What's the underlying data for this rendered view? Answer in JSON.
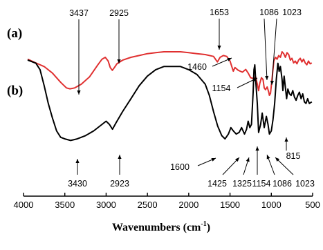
{
  "chart_data": {
    "type": "line",
    "x_axis": {
      "title": "Wavenumbers (cm",
      "unit_superscript": "-1",
      "title_close": ")",
      "lim": [
        4000,
        500
      ],
      "reversed": true,
      "ticks": [
        "4000",
        "3500",
        "3000",
        "2500",
        "2000",
        "1500",
        "1000",
        "500"
      ]
    },
    "series": [
      {
        "panel_label": "(a)",
        "color": "#e03030",
        "points": [
          [
            3950,
            0.42
          ],
          [
            3850,
            0.38
          ],
          [
            3750,
            0.34
          ],
          [
            3650,
            0.27
          ],
          [
            3550,
            0.17
          ],
          [
            3480,
            0.11
          ],
          [
            3437,
            0.1
          ],
          [
            3380,
            0.11
          ],
          [
            3300,
            0.15
          ],
          [
            3200,
            0.23
          ],
          [
            3100,
            0.36
          ],
          [
            3050,
            0.42
          ],
          [
            3010,
            0.44
          ],
          [
            2975,
            0.4
          ],
          [
            2950,
            0.33
          ],
          [
            2925,
            0.3
          ],
          [
            2900,
            0.33
          ],
          [
            2870,
            0.37
          ],
          [
            2800,
            0.41
          ],
          [
            2700,
            0.44
          ],
          [
            2600,
            0.46
          ],
          [
            2500,
            0.48
          ],
          [
            2400,
            0.49
          ],
          [
            2300,
            0.5
          ],
          [
            2200,
            0.5
          ],
          [
            2100,
            0.5
          ],
          [
            2000,
            0.49
          ],
          [
            1900,
            0.48
          ],
          [
            1800,
            0.47
          ],
          [
            1700,
            0.45
          ],
          [
            1653,
            0.39
          ],
          [
            1620,
            0.44
          ],
          [
            1580,
            0.46
          ],
          [
            1540,
            0.45
          ],
          [
            1500,
            0.4
          ],
          [
            1460,
            0.29
          ],
          [
            1440,
            0.33
          ],
          [
            1400,
            0.3
          ],
          [
            1350,
            0.28
          ],
          [
            1310,
            0.31
          ],
          [
            1280,
            0.27
          ],
          [
            1250,
            0.22
          ],
          [
            1210,
            0.21
          ],
          [
            1190,
            0.23
          ],
          [
            1170,
            0.15
          ],
          [
            1154,
            0.08
          ],
          [
            1140,
            0.16
          ],
          [
            1120,
            0.22
          ],
          [
            1100,
            0.2
          ],
          [
            1086,
            0.11
          ],
          [
            1070,
            0.09
          ],
          [
            1050,
            0.12
          ],
          [
            1030,
            0.06
          ],
          [
            1023,
            0.03
          ],
          [
            1010,
            0.05
          ],
          [
            990,
            0.22
          ],
          [
            970,
            0.4
          ],
          [
            950,
            0.44
          ],
          [
            930,
            0.42
          ],
          [
            910,
            0.46
          ],
          [
            890,
            0.44
          ],
          [
            870,
            0.5
          ],
          [
            850,
            0.48
          ],
          [
            830,
            0.44
          ],
          [
            810,
            0.49
          ],
          [
            790,
            0.47
          ],
          [
            770,
            0.41
          ],
          [
            750,
            0.43
          ],
          [
            730,
            0.38
          ],
          [
            710,
            0.4
          ],
          [
            690,
            0.37
          ],
          [
            670,
            0.41
          ],
          [
            650,
            0.43
          ],
          [
            630,
            0.39
          ],
          [
            610,
            0.42
          ],
          [
            590,
            0.38
          ],
          [
            570,
            0.36
          ],
          [
            550,
            0.4
          ],
          [
            530,
            0.37
          ],
          [
            510,
            0.38
          ]
        ]
      },
      {
        "panel_label": "(b)",
        "color": "#000000",
        "points": [
          [
            3950,
            0.82
          ],
          [
            3850,
            0.8
          ],
          [
            3800,
            0.76
          ],
          [
            3750,
            0.66
          ],
          [
            3700,
            0.55
          ],
          [
            3650,
            0.46
          ],
          [
            3600,
            0.38
          ],
          [
            3550,
            0.34
          ],
          [
            3500,
            0.33
          ],
          [
            3430,
            0.32
          ],
          [
            3350,
            0.33
          ],
          [
            3250,
            0.35
          ],
          [
            3150,
            0.38
          ],
          [
            3050,
            0.42
          ],
          [
            3000,
            0.44
          ],
          [
            2960,
            0.42
          ],
          [
            2923,
            0.39
          ],
          [
            2880,
            0.43
          ],
          [
            2800,
            0.5
          ],
          [
            2700,
            0.58
          ],
          [
            2600,
            0.66
          ],
          [
            2500,
            0.72
          ],
          [
            2400,
            0.76
          ],
          [
            2300,
            0.78
          ],
          [
            2200,
            0.78
          ],
          [
            2100,
            0.78
          ],
          [
            2000,
            0.76
          ],
          [
            1900,
            0.73
          ],
          [
            1800,
            0.67
          ],
          [
            1750,
            0.6
          ],
          [
            1700,
            0.5
          ],
          [
            1650,
            0.41
          ],
          [
            1600,
            0.35
          ],
          [
            1560,
            0.33
          ],
          [
            1520,
            0.36
          ],
          [
            1490,
            0.4
          ],
          [
            1460,
            0.38
          ],
          [
            1425,
            0.36
          ],
          [
            1390,
            0.37
          ],
          [
            1360,
            0.4
          ],
          [
            1325,
            0.36
          ],
          [
            1300,
            0.39
          ],
          [
            1280,
            0.44
          ],
          [
            1260,
            0.4
          ],
          [
            1240,
            0.42
          ],
          [
            1220,
            0.62
          ],
          [
            1210,
            0.76
          ],
          [
            1200,
            0.79
          ],
          [
            1190,
            0.7
          ],
          [
            1170,
            0.55
          ],
          [
            1154,
            0.37
          ],
          [
            1130,
            0.42
          ],
          [
            1110,
            0.49
          ],
          [
            1086,
            0.4
          ],
          [
            1060,
            0.47
          ],
          [
            1040,
            0.42
          ],
          [
            1023,
            0.36
          ],
          [
            1000,
            0.38
          ],
          [
            980,
            0.45
          ],
          [
            960,
            0.55
          ],
          [
            940,
            0.7
          ],
          [
            920,
            0.8
          ],
          [
            905,
            0.75
          ],
          [
            890,
            0.78
          ],
          [
            870,
            0.7
          ],
          [
            860,
            0.63
          ],
          [
            845,
            0.72
          ],
          [
            830,
            0.65
          ],
          [
            815,
            0.58
          ],
          [
            800,
            0.64
          ],
          [
            780,
            0.61
          ],
          [
            760,
            0.6
          ],
          [
            740,
            0.63
          ],
          [
            720,
            0.59
          ],
          [
            700,
            0.57
          ],
          [
            680,
            0.6
          ],
          [
            660,
            0.62
          ],
          [
            640,
            0.58
          ],
          [
            620,
            0.61
          ],
          [
            600,
            0.56
          ],
          [
            580,
            0.55
          ],
          [
            560,
            0.58
          ],
          [
            540,
            0.55
          ],
          [
            510,
            0.56
          ]
        ]
      }
    ],
    "annotations_a": [
      {
        "label": "3437",
        "x": 3437
      },
      {
        "label": "2925",
        "x": 2925
      },
      {
        "label": "1653",
        "x": 1653
      },
      {
        "label": "1460",
        "x": 1460
      },
      {
        "label": "1154",
        "x": 1154
      },
      {
        "label": "1086",
        "x": 1086
      },
      {
        "label": "1023",
        "x": 1023
      }
    ],
    "annotations_b": [
      {
        "label": "3430",
        "x": 3430
      },
      {
        "label": "2923",
        "x": 2923
      },
      {
        "label": "1600",
        "x": 1600
      },
      {
        "label": "1425",
        "x": 1425
      },
      {
        "label": "1325",
        "x": 1325
      },
      {
        "label": "1154",
        "x": 1154
      },
      {
        "label": "1086",
        "x": 1086
      },
      {
        "label": "1023",
        "x": 1023
      },
      {
        "label": "815",
        "x": 815
      }
    ]
  }
}
